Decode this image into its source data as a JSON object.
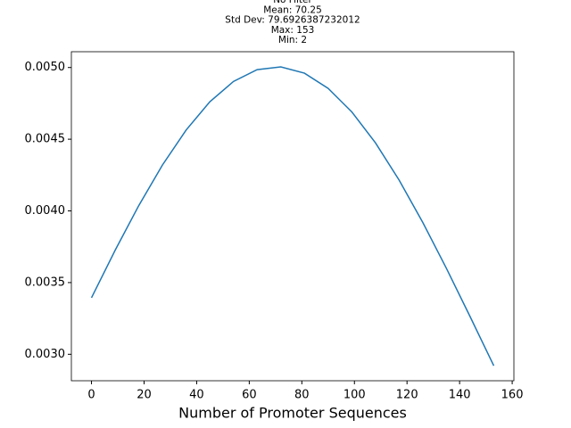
{
  "chart_data": {
    "type": "line",
    "title": [
      "No Filter",
      "Mean: 70.25",
      "Std Dev: 79.6926387232012",
      "Max: 153",
      "Min: 2"
    ],
    "x_label": "Number of Promoter Sequences",
    "x": [
      0,
      9,
      18,
      27,
      36,
      45,
      54,
      63,
      72,
      81,
      90,
      99,
      108,
      117,
      126,
      135,
      144,
      153
    ],
    "series": [
      {
        "color": "#1f77b4",
        "values": [
          0.0033943,
          0.0037258,
          0.0040378,
          0.0043204,
          0.0045643,
          0.0047609,
          0.0049029,
          0.0049852,
          0.0050047,
          0.0049605,
          0.0048545,
          0.0046905,
          0.0044747,
          0.0042146,
          0.0039194,
          0.0035985,
          0.0032623,
          0.0029197
        ]
      }
    ],
    "xlim": [
      -7.65,
      160.65
    ],
    "ylim": [
      0.0028154,
      0.0051102
    ],
    "xticks": [
      0,
      20,
      40,
      60,
      80,
      100,
      120,
      140,
      160
    ],
    "yticks": [
      {
        "value": 0.003,
        "label": "0.0030"
      },
      {
        "value": 0.0035,
        "label": "0.0035"
      },
      {
        "value": 0.004,
        "label": "0.0040"
      },
      {
        "value": 0.0045,
        "label": "0.0045"
      },
      {
        "value": 0.005,
        "label": "0.0050"
      }
    ]
  }
}
